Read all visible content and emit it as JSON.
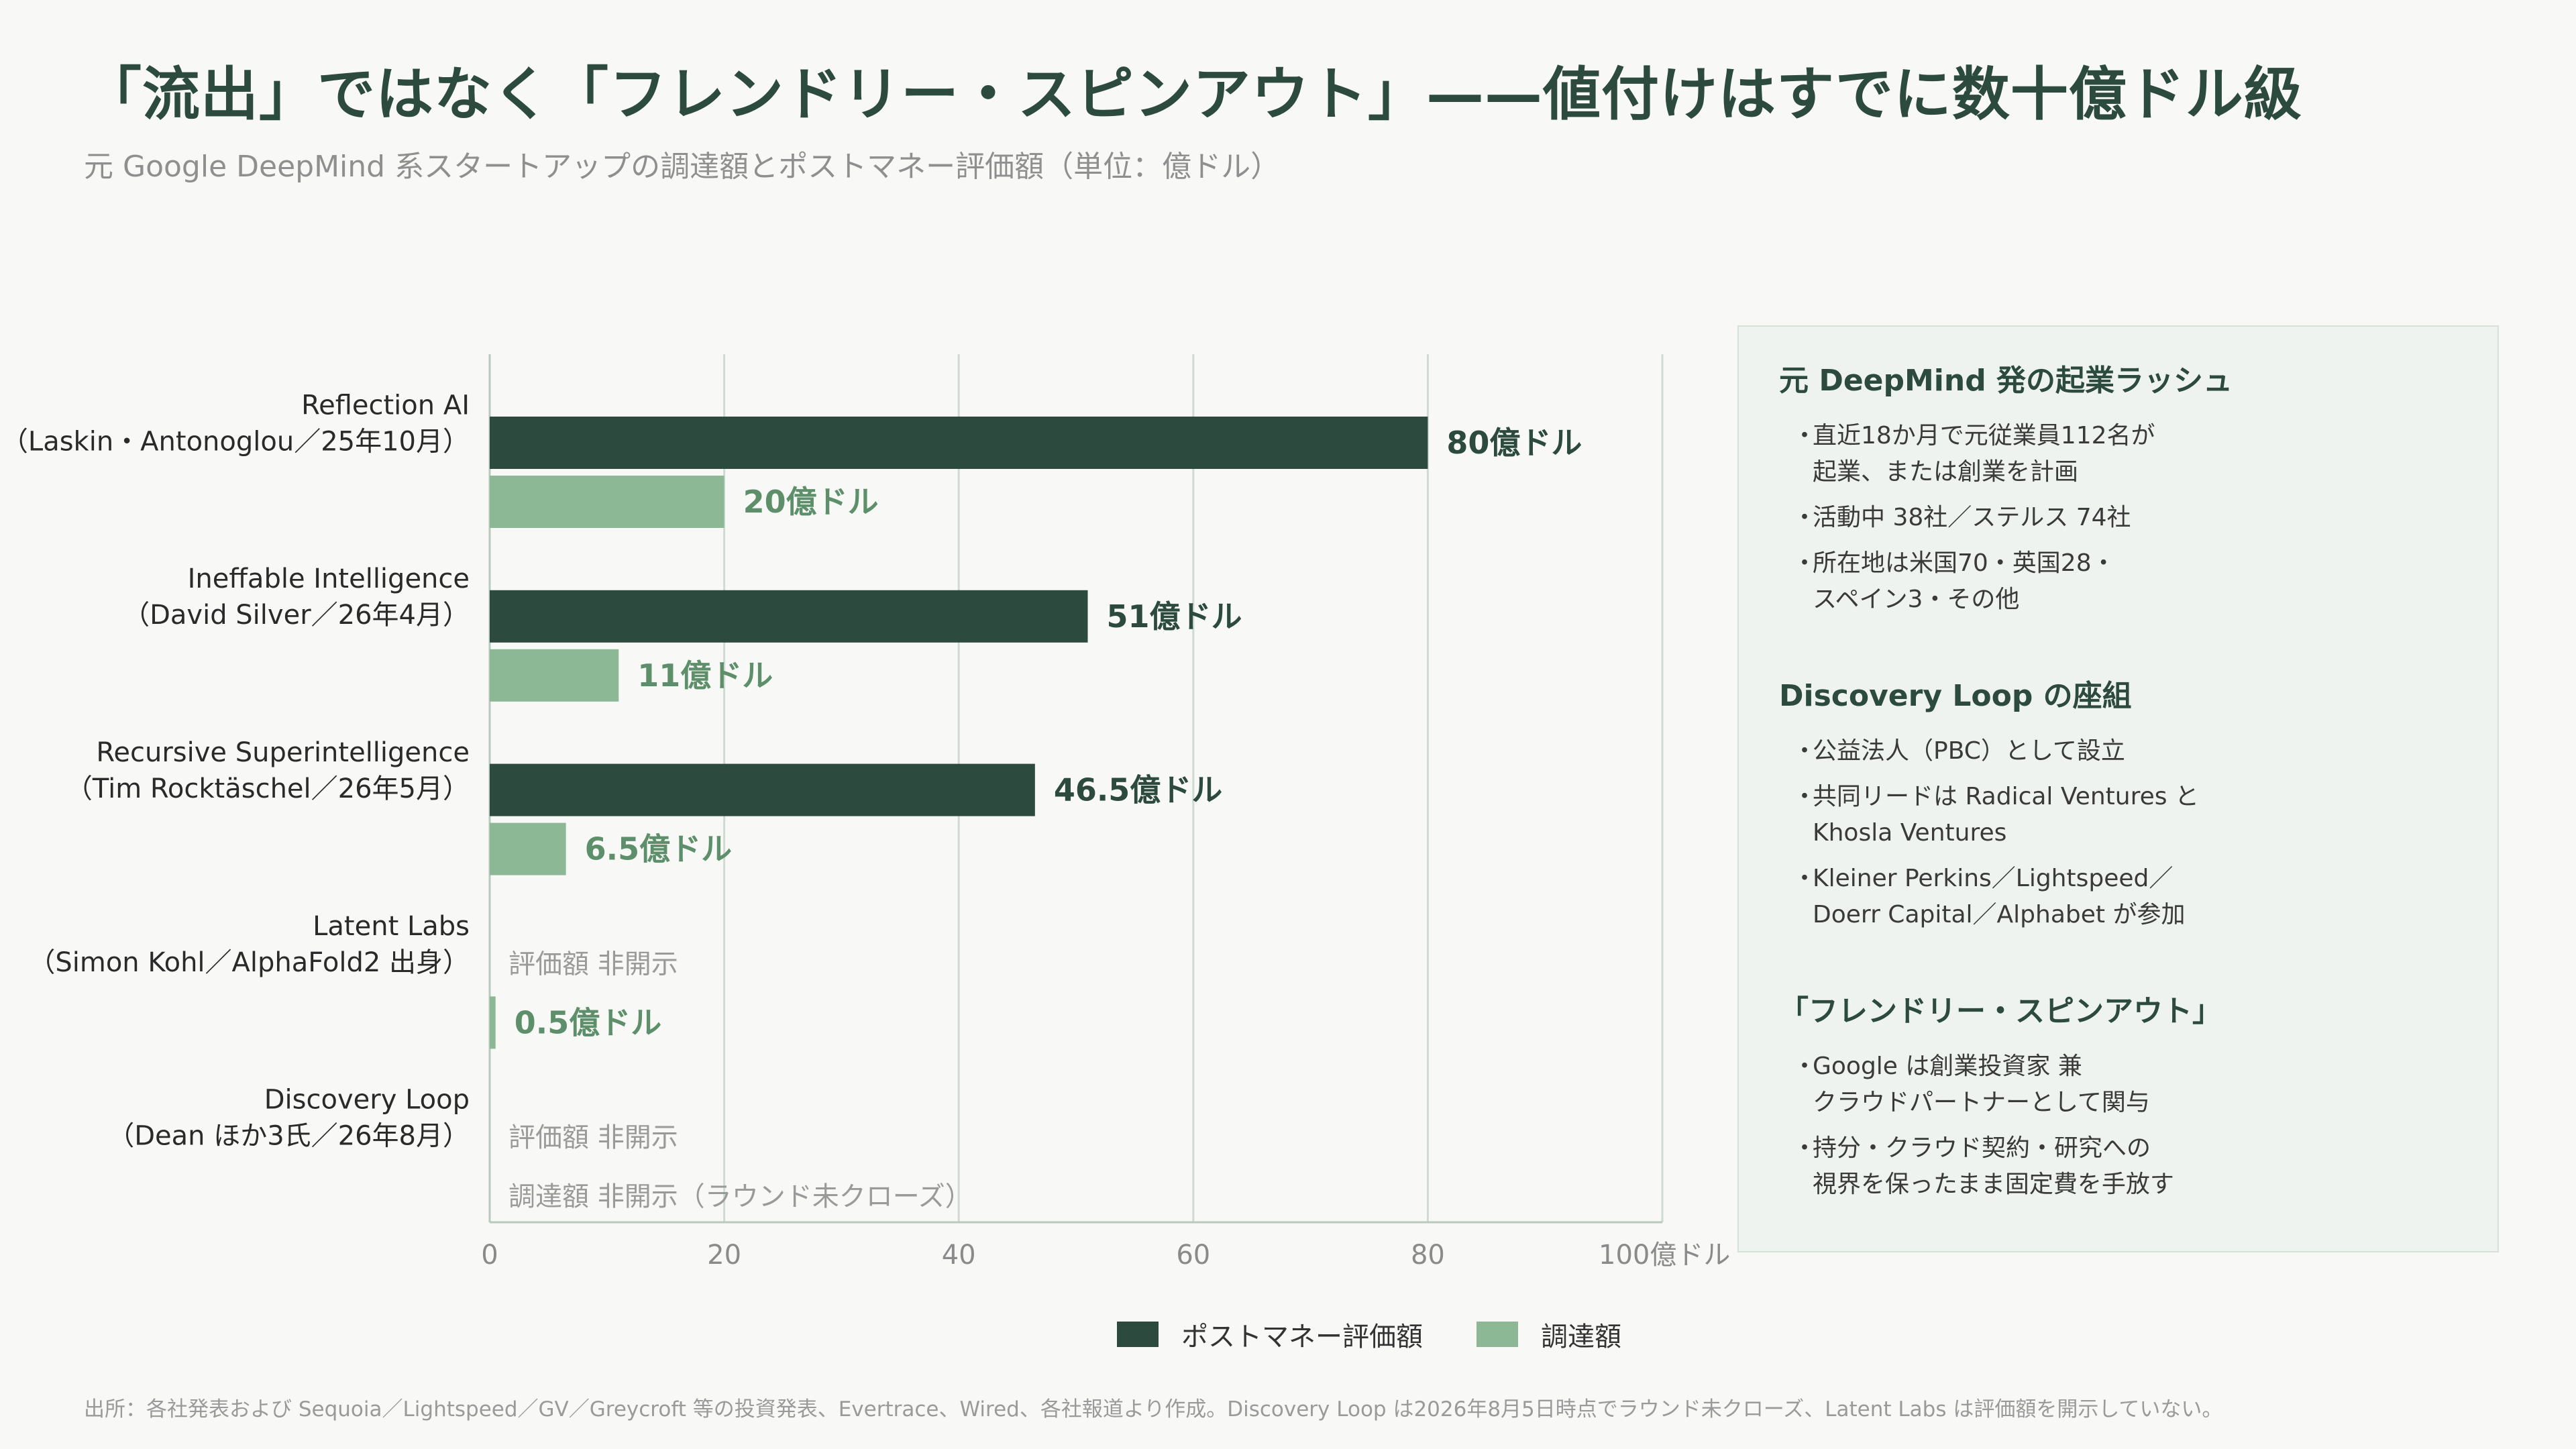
{
  "title": "「流出」ではなく「フレンドリー・スピンアウト」——値付けはすでに数十億ドル級",
  "subtitle": "元 Google DeepMind 系スタートアップの調達額とポストマネー評価額（単位：億ドル）",
  "colors": {
    "valuation": "#2c4a3e",
    "raised": "#8cb896",
    "grid": "#cddbd0",
    "muted": "#9a9a9a"
  },
  "chart_data": {
    "type": "bar",
    "orientation": "horizontal",
    "categories": [
      {
        "name": "Reflection AI",
        "sub": "（Laskin・Antonoglou／25年10月）"
      },
      {
        "name": "Ineffable Intelligence",
        "sub": "（David Silver／26年4月）"
      },
      {
        "name": "Recursive Superintelligence",
        "sub": "（Tim Rocktäschel／26年5月）"
      },
      {
        "name": "Latent Labs",
        "sub": "（Simon Kohl／AlphaFold2 出身）"
      },
      {
        "name": "Discovery Loop",
        "sub": "（Dean ほか3氏／26年8月）"
      }
    ],
    "series": [
      {
        "name": "ポストマネー評価額",
        "values": [
          80,
          51,
          46.5,
          null,
          null
        ],
        "labels": [
          "80億ドル",
          "51億ドル",
          "46.5億ドル",
          "評価額 非開示",
          "評価額 非開示"
        ]
      },
      {
        "name": "調達額",
        "values": [
          20,
          11,
          6.5,
          0.5,
          null
        ],
        "labels": [
          "20億ドル",
          "11億ドル",
          "6.5億ドル",
          "0.5億ドル",
          "調達額 非開示（ラウンド未クローズ）"
        ]
      }
    ],
    "xlim": [
      0,
      100
    ],
    "xticks": [
      "0",
      "20",
      "40",
      "60",
      "80",
      "100億ドル"
    ],
    "grid": true,
    "legend": "bottom"
  },
  "sidebar": {
    "sections": [
      {
        "heading": "元 DeepMind 発の起業ラッシュ",
        "items": [
          "直近18か月で元従業員112名が\n起業、または創業を計画",
          "活動中 38社／ステルス 74社",
          "所在地は米国70・英国28・\nスペイン3・その他"
        ]
      },
      {
        "heading": "Discovery Loop の座組",
        "items": [
          "公益法人（PBC）として設立",
          "共同リードは Radical Ventures と\nKhosla Ventures",
          "Kleiner Perkins／Lightspeed／\nDoerr Capital／Alphabet が参加"
        ]
      },
      {
        "heading": "「フレンドリー・スピンアウト」",
        "items": [
          "Google は創業投資家 兼\nクラウドパートナーとして関与",
          "持分・クラウド契約・研究への\n視界を保ったまま固定費を手放す"
        ]
      }
    ]
  },
  "bullet": "・",
  "source": "出所：各社発表および Sequoia／Lightspeed／GV／Greycroft 等の投資発表、Evertrace、Wired、各社報道より作成。Discovery Loop は2026年8月5日時点でラウンド未クローズ、Latent Labs は評価額を開示していない。"
}
